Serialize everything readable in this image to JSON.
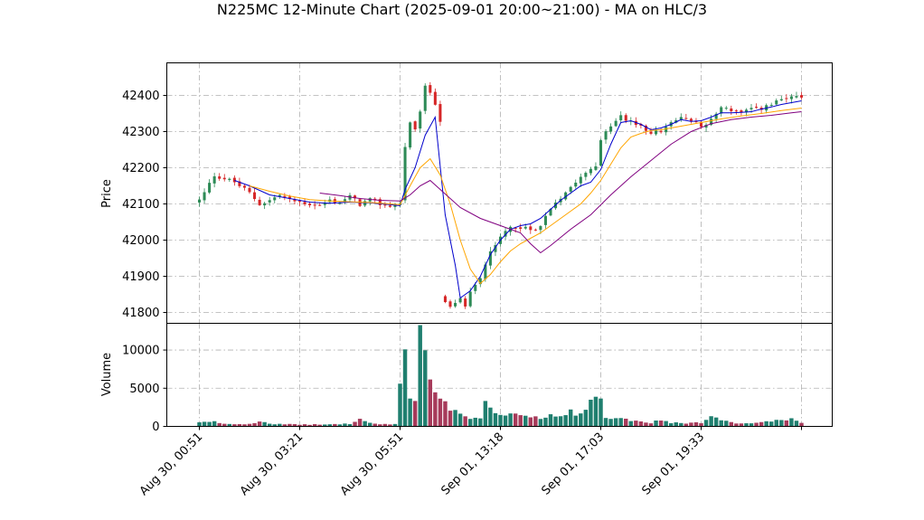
{
  "chart_data": {
    "type": "candlestick",
    "title": "N225MC 12-Minute Chart (2025-09-01 20:00~21:00) - MA on HLC/3",
    "price_panel": {
      "ylabel": "Price",
      "ylim": [
        41770,
        42490
      ],
      "yticks": [
        41800,
        41900,
        42000,
        42100,
        42200,
        42300,
        42400
      ],
      "grid": true
    },
    "volume_panel": {
      "ylabel": "Volume",
      "ylim": [
        0,
        13500
      ],
      "yticks": [
        0,
        5000,
        10000
      ],
      "grid": true
    },
    "xticks": [
      {
        "label": "Aug 30, 00:51",
        "index": 0
      },
      {
        "label": "Aug 30, 03:21",
        "index": 20
      },
      {
        "label": "Aug 30, 05:51",
        "index": 40
      },
      {
        "label": "Sep 01, 13:18",
        "index": 60
      },
      {
        "label": "Sep 01, 17:03",
        "index": 80
      },
      {
        "label": "Sep 01, 19:33",
        "index": 100
      },
      {
        "label": "",
        "index": 120
      }
    ],
    "n_candles": 121,
    "up_color": "#2e8b57",
    "down_color": "#d62728",
    "close_anchors": [
      [
        0,
        42110
      ],
      [
        1,
        42130
      ],
      [
        3,
        42180
      ],
      [
        5,
        42170
      ],
      [
        7,
        42160
      ],
      [
        10,
        42130
      ],
      [
        12,
        42100
      ],
      [
        14,
        42110
      ],
      [
        16,
        42125
      ],
      [
        18,
        42110
      ],
      [
        20,
        42105
      ],
      [
        22,
        42100
      ],
      [
        24,
        42095
      ],
      [
        26,
        42110
      ],
      [
        28,
        42105
      ],
      [
        30,
        42120
      ],
      [
        32,
        42100
      ],
      [
        34,
        42110
      ],
      [
        36,
        42100
      ],
      [
        38,
        42095
      ],
      [
        40,
        42100
      ],
      [
        41,
        42260
      ],
      [
        42,
        42320
      ],
      [
        43,
        42300
      ],
      [
        44,
        42360
      ],
      [
        45,
        42420
      ],
      [
        46,
        42410
      ],
      [
        47,
        42380
      ],
      [
        48,
        42330
      ],
      [
        48.5,
        41830
      ],
      [
        50,
        41810
      ],
      [
        52,
        41835
      ],
      [
        53,
        41820
      ],
      [
        54,
        41860
      ],
      [
        56,
        41900
      ],
      [
        58,
        41970
      ],
      [
        60,
        42010
      ],
      [
        62,
        42040
      ],
      [
        64,
        42030
      ],
      [
        66,
        42030
      ],
      [
        68,
        42040
      ],
      [
        70,
        42090
      ],
      [
        72,
        42120
      ],
      [
        74,
        42150
      ],
      [
        76,
        42180
      ],
      [
        78,
        42200
      ],
      [
        79,
        42210
      ],
      [
        80,
        42270
      ],
      [
        82,
        42320
      ],
      [
        84,
        42340
      ],
      [
        86,
        42330
      ],
      [
        88,
        42310
      ],
      [
        90,
        42300
      ],
      [
        92,
        42300
      ],
      [
        94,
        42320
      ],
      [
        96,
        42340
      ],
      [
        98,
        42330
      ],
      [
        100,
        42320
      ],
      [
        102,
        42330
      ],
      [
        104,
        42370
      ],
      [
        106,
        42360
      ],
      [
        108,
        42350
      ],
      [
        110,
        42360
      ],
      [
        112,
        42365
      ],
      [
        114,
        42375
      ],
      [
        116,
        42385
      ],
      [
        118,
        42395
      ],
      [
        120,
        42390
      ]
    ],
    "volume_anchors": [
      [
        0,
        500
      ],
      [
        3,
        600
      ],
      [
        5,
        350
      ],
      [
        8,
        300
      ],
      [
        10,
        350
      ],
      [
        12,
        700
      ],
      [
        15,
        300
      ],
      [
        20,
        250
      ],
      [
        25,
        250
      ],
      [
        30,
        350
      ],
      [
        32,
        900
      ],
      [
        35,
        300
      ],
      [
        39,
        300
      ],
      [
        41,
        10500
      ],
      [
        42,
        3800
      ],
      [
        43,
        3500
      ],
      [
        44,
        12200
      ],
      [
        45,
        8600
      ],
      [
        46,
        6000
      ],
      [
        47,
        4200
      ],
      [
        48,
        3600
      ],
      [
        49,
        3700
      ],
      [
        50,
        1800
      ],
      [
        52,
        2000
      ],
      [
        54,
        1200
      ],
      [
        56,
        1000
      ],
      [
        57,
        3000
      ],
      [
        58,
        2200
      ],
      [
        60,
        1400
      ],
      [
        62,
        1700
      ],
      [
        64,
        1300
      ],
      [
        66,
        1200
      ],
      [
        68,
        1000
      ],
      [
        70,
        1400
      ],
      [
        72,
        1600
      ],
      [
        74,
        1900
      ],
      [
        76,
        1600
      ],
      [
        77,
        2700
      ],
      [
        78,
        3600
      ],
      [
        80,
        4100
      ],
      [
        81,
        1200
      ],
      [
        82,
        1000
      ],
      [
        84,
        1100
      ],
      [
        86,
        700
      ],
      [
        88,
        600
      ],
      [
        90,
        500
      ],
      [
        92,
        800
      ],
      [
        94,
        500
      ],
      [
        96,
        400
      ],
      [
        98,
        500
      ],
      [
        100,
        450
      ],
      [
        102,
        1200
      ],
      [
        104,
        800
      ],
      [
        106,
        500
      ],
      [
        108,
        400
      ],
      [
        110,
        500
      ],
      [
        112,
        600
      ],
      [
        114,
        700
      ],
      [
        116,
        900
      ],
      [
        118,
        900
      ],
      [
        120,
        500
      ]
    ],
    "ma_series": [
      {
        "name": "",
        "color": "#0000cc",
        "points": [
          [
            7,
            42165
          ],
          [
            10,
            42150
          ],
          [
            14,
            42125
          ],
          [
            18,
            42115
          ],
          [
            22,
            42105
          ],
          [
            26,
            42102
          ],
          [
            30,
            42105
          ],
          [
            34,
            42103
          ],
          [
            38,
            42098
          ],
          [
            40,
            42095
          ],
          [
            41,
            42140
          ],
          [
            43,
            42200
          ],
          [
            45,
            42290
          ],
          [
            47,
            42340
          ],
          [
            49,
            42070
          ],
          [
            51,
            41930
          ],
          [
            52,
            41840
          ],
          [
            54,
            41860
          ],
          [
            56,
            41900
          ],
          [
            58,
            41960
          ],
          [
            60,
            42000
          ],
          [
            62,
            42030
          ],
          [
            64,
            42040
          ],
          [
            66,
            42045
          ],
          [
            68,
            42060
          ],
          [
            70,
            42085
          ],
          [
            72,
            42110
          ],
          [
            74,
            42130
          ],
          [
            76,
            42150
          ],
          [
            78,
            42160
          ],
          [
            80,
            42195
          ],
          [
            82,
            42265
          ],
          [
            84,
            42325
          ],
          [
            86,
            42330
          ],
          [
            88,
            42320
          ],
          [
            90,
            42305
          ],
          [
            92,
            42310
          ],
          [
            94,
            42320
          ],
          [
            96,
            42333
          ],
          [
            98,
            42328
          ],
          [
            100,
            42330
          ],
          [
            102,
            42340
          ],
          [
            104,
            42352
          ],
          [
            106,
            42352
          ],
          [
            108,
            42353
          ],
          [
            110,
            42355
          ],
          [
            112,
            42362
          ],
          [
            114,
            42368
          ],
          [
            116,
            42375
          ],
          [
            118,
            42380
          ],
          [
            120,
            42385
          ]
        ]
      },
      {
        "name": "",
        "color": "#ffa500",
        "points": [
          [
            10,
            42150
          ],
          [
            14,
            42135
          ],
          [
            18,
            42122
          ],
          [
            22,
            42112
          ],
          [
            26,
            42108
          ],
          [
            30,
            42106
          ],
          [
            34,
            42104
          ],
          [
            38,
            42100
          ],
          [
            40,
            42098
          ],
          [
            42,
            42150
          ],
          [
            44,
            42200
          ],
          [
            46,
            42225
          ],
          [
            48,
            42180
          ],
          [
            50,
            42100
          ],
          [
            52,
            42000
          ],
          [
            54,
            41920
          ],
          [
            56,
            41880
          ],
          [
            58,
            41905
          ],
          [
            60,
            41940
          ],
          [
            62,
            41970
          ],
          [
            64,
            41990
          ],
          [
            66,
            42005
          ],
          [
            68,
            42020
          ],
          [
            70,
            42040
          ],
          [
            72,
            42060
          ],
          [
            74,
            42080
          ],
          [
            76,
            42100
          ],
          [
            78,
            42130
          ],
          [
            80,
            42165
          ],
          [
            82,
            42210
          ],
          [
            84,
            42255
          ],
          [
            86,
            42285
          ],
          [
            88,
            42295
          ],
          [
            90,
            42303
          ],
          [
            92,
            42305
          ],
          [
            94,
            42310
          ],
          [
            96,
            42315
          ],
          [
            98,
            42320
          ],
          [
            100,
            42325
          ],
          [
            104,
            42335
          ],
          [
            108,
            42343
          ],
          [
            112,
            42350
          ],
          [
            116,
            42358
          ],
          [
            120,
            42365
          ]
        ]
      },
      {
        "name": "",
        "color": "#800080",
        "points": [
          [
            24,
            42130
          ],
          [
            28,
            42123
          ],
          [
            32,
            42115
          ],
          [
            36,
            42110
          ],
          [
            40,
            42108
          ],
          [
            42,
            42125
          ],
          [
            44,
            42150
          ],
          [
            46,
            42165
          ],
          [
            48,
            42140
          ],
          [
            52,
            42090
          ],
          [
            56,
            42060
          ],
          [
            60,
            42040
          ],
          [
            64,
            42020
          ],
          [
            66,
            41990
          ],
          [
            68,
            41965
          ],
          [
            70,
            41985
          ],
          [
            74,
            42030
          ],
          [
            78,
            42070
          ],
          [
            82,
            42125
          ],
          [
            86,
            42175
          ],
          [
            90,
            42220
          ],
          [
            94,
            42265
          ],
          [
            98,
            42300
          ],
          [
            102,
            42322
          ],
          [
            106,
            42333
          ],
          [
            110,
            42340
          ],
          [
            114,
            42345
          ],
          [
            118,
            42352
          ],
          [
            120,
            42355
          ]
        ]
      }
    ]
  }
}
